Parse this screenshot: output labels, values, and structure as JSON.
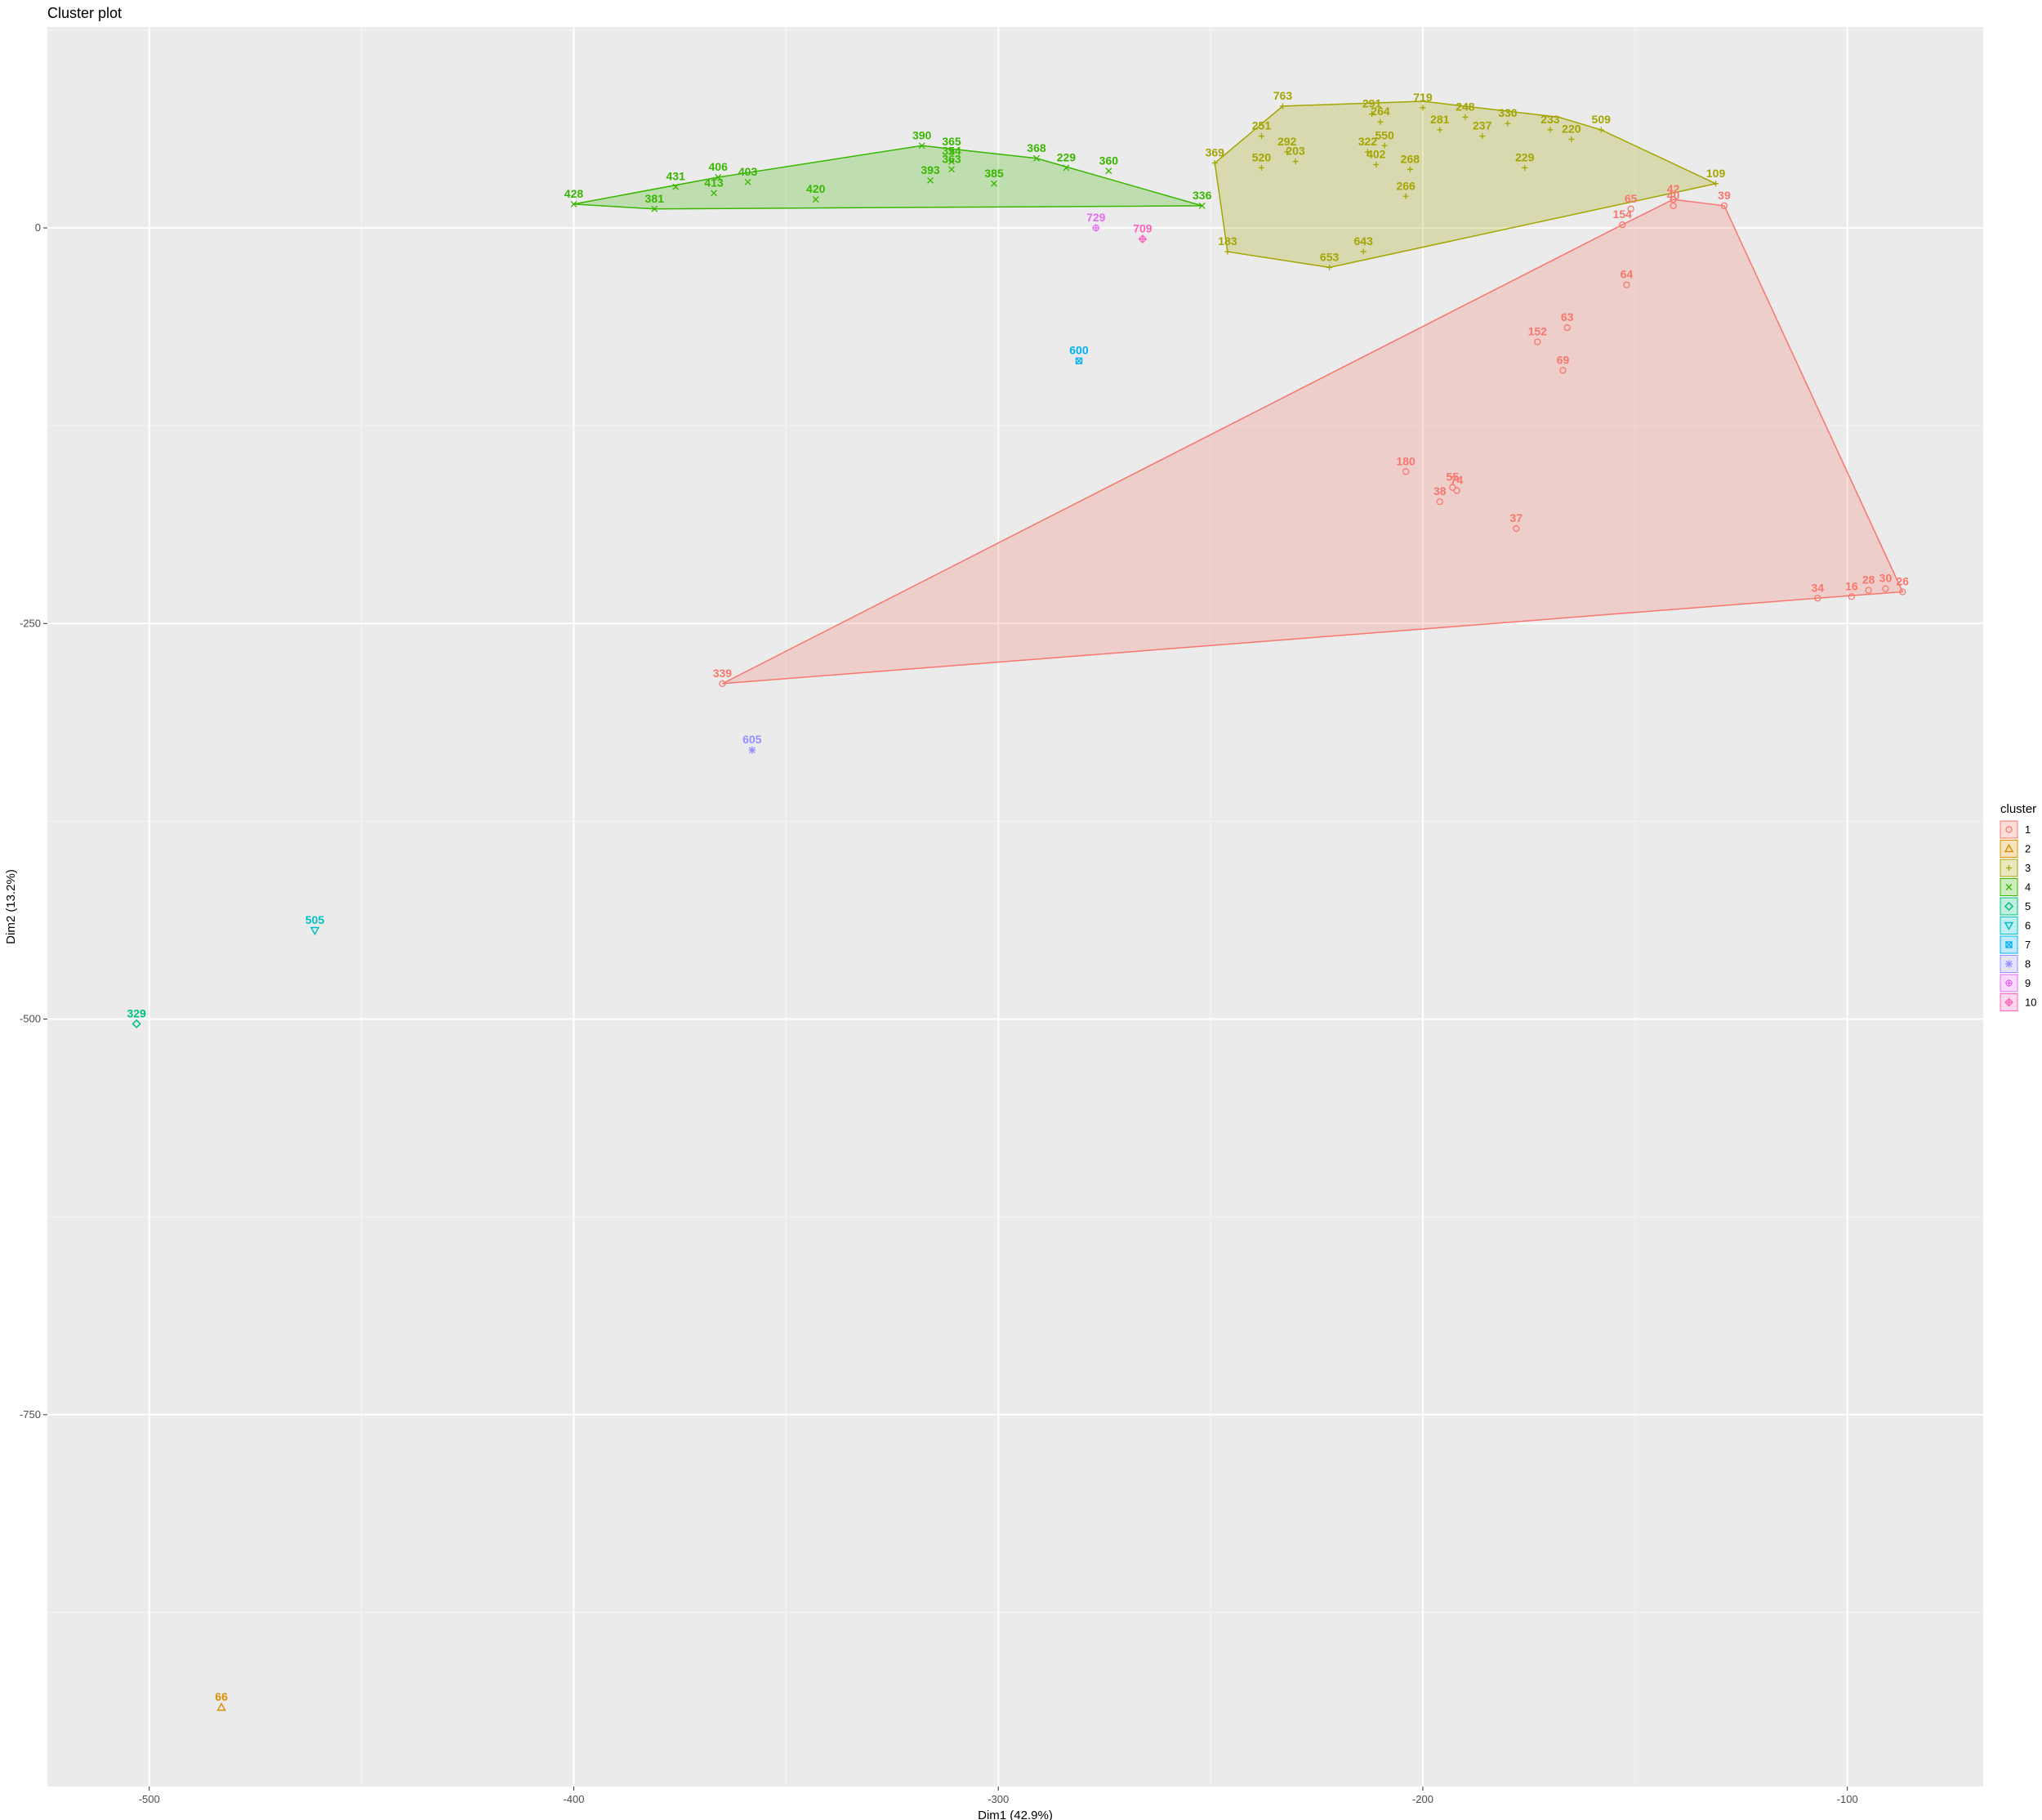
{
  "chart_data": {
    "type": "scatter",
    "title": "Cluster plot",
    "xlabel": "Dim1 (42.9%)",
    "ylabel": "Dim2 (13.2%)",
    "xlim": [
      -524,
      -68
    ],
    "ylim": [
      -985,
      127
    ],
    "x_ticks": [
      -500,
      -400,
      -300,
      -200,
      -100
    ],
    "y_ticks": [
      0,
      -250,
      -500,
      -750
    ],
    "grid": true,
    "legend": {
      "title": "cluster",
      "position": "right",
      "entries": [
        "1",
        "2",
        "3",
        "4",
        "5",
        "6",
        "7",
        "8",
        "9",
        "10"
      ]
    },
    "colors": [
      "#F8766D",
      "#D89000",
      "#A3A500",
      "#39B600",
      "#00BF7D",
      "#00BFC4",
      "#00B0F6",
      "#9590FF",
      "#E76BF3",
      "#FF62BC"
    ],
    "series": [
      {
        "name": "1",
        "points": [
          {
            "x": -365,
            "y": -288,
            "label": "339"
          },
          {
            "x": -153,
            "y": 2,
            "label": "154"
          },
          {
            "x": -151,
            "y": 12,
            "label": "65"
          },
          {
            "x": -141,
            "y": 14,
            "label": "40"
          },
          {
            "x": -141,
            "y": 18,
            "label": "42"
          },
          {
            "x": -129,
            "y": 14,
            "label": "39"
          },
          {
            "x": -152,
            "y": -36,
            "label": "64"
          },
          {
            "x": -173,
            "y": -72,
            "label": "152"
          },
          {
            "x": -166,
            "y": -63,
            "label": "63"
          },
          {
            "x": -167,
            "y": -90,
            "label": "69"
          },
          {
            "x": -204,
            "y": -154,
            "label": "180"
          },
          {
            "x": -196,
            "y": -173,
            "label": "38"
          },
          {
            "x": -193,
            "y": -164,
            "label": "55"
          },
          {
            "x": -192,
            "y": -166,
            "label": "74"
          },
          {
            "x": -178,
            "y": -190,
            "label": "37"
          },
          {
            "x": -107,
            "y": -234,
            "label": "34"
          },
          {
            "x": -99,
            "y": -233,
            "label": "16"
          },
          {
            "x": -95,
            "y": -229,
            "label": "28"
          },
          {
            "x": -91,
            "y": -228,
            "label": "30"
          },
          {
            "x": -87,
            "y": -230,
            "label": "26"
          }
        ]
      },
      {
        "name": "2",
        "points": [
          {
            "x": -483,
            "y": -935,
            "label": "66"
          }
        ]
      },
      {
        "name": "3",
        "points": [
          {
            "x": -249,
            "y": 41,
            "label": "369"
          },
          {
            "x": -233,
            "y": 77,
            "label": "763"
          },
          {
            "x": -238,
            "y": 58,
            "label": "251"
          },
          {
            "x": -232,
            "y": 48,
            "label": "292"
          },
          {
            "x": -238,
            "y": 38,
            "label": "520"
          },
          {
            "x": -230,
            "y": 42,
            "label": "203"
          },
          {
            "x": -213,
            "y": 48,
            "label": "322"
          },
          {
            "x": -209,
            "y": 52,
            "label": "550"
          },
          {
            "x": -211,
            "y": 40,
            "label": "402"
          },
          {
            "x": -203,
            "y": 37,
            "label": "268"
          },
          {
            "x": -204,
            "y": 20,
            "label": "266"
          },
          {
            "x": -210,
            "y": 67,
            "label": "264"
          },
          {
            "x": -212,
            "y": 72,
            "label": "291"
          },
          {
            "x": -200,
            "y": 76,
            "label": "719"
          },
          {
            "x": -190,
            "y": 70,
            "label": "248"
          },
          {
            "x": -180,
            "y": 66,
            "label": "330"
          },
          {
            "x": -170,
            "y": 62,
            "label": "233"
          },
          {
            "x": -165,
            "y": 56,
            "label": "220"
          },
          {
            "x": -158,
            "y": 62,
            "label": "509"
          },
          {
            "x": -131,
            "y": 28,
            "label": "109"
          },
          {
            "x": -246,
            "y": -15,
            "label": "183"
          },
          {
            "x": -222,
            "y": -25,
            "label": "653"
          },
          {
            "x": -214,
            "y": -15,
            "label": "643"
          },
          {
            "x": -176,
            "y": 38,
            "label": "229"
          },
          {
            "x": -196,
            "y": 62,
            "label": "281"
          },
          {
            "x": -186,
            "y": 58,
            "label": "237"
          }
        ]
      },
      {
        "name": "4",
        "points": [
          {
            "x": -400,
            "y": 15,
            "label": "428"
          },
          {
            "x": -381,
            "y": 12,
            "label": "381"
          },
          {
            "x": -376,
            "y": 26,
            "label": "431"
          },
          {
            "x": -366,
            "y": 32,
            "label": "406"
          },
          {
            "x": -367,
            "y": 22,
            "label": "413"
          },
          {
            "x": -359,
            "y": 29,
            "label": "403"
          },
          {
            "x": -343,
            "y": 18,
            "label": "420"
          },
          {
            "x": -318,
            "y": 52,
            "label": "390"
          },
          {
            "x": -311,
            "y": 37,
            "label": "363"
          },
          {
            "x": -311,
            "y": 48,
            "label": "365"
          },
          {
            "x": -311,
            "y": 42,
            "label": "354"
          },
          {
            "x": -316,
            "y": 30,
            "label": "393"
          },
          {
            "x": -301,
            "y": 28,
            "label": "385"
          },
          {
            "x": -291,
            "y": 44,
            "label": "368"
          },
          {
            "x": -284,
            "y": 38,
            "label": "229"
          },
          {
            "x": -274,
            "y": 36,
            "label": "360"
          },
          {
            "x": -252,
            "y": 14,
            "label": "336"
          }
        ]
      },
      {
        "name": "5",
        "points": [
          {
            "x": -503,
            "y": -503,
            "label": "329"
          }
        ]
      },
      {
        "name": "6",
        "points": [
          {
            "x": -461,
            "y": -444,
            "label": "505"
          }
        ]
      },
      {
        "name": "7",
        "points": [
          {
            "x": -281,
            "y": -84,
            "label": "600"
          }
        ]
      },
      {
        "name": "8",
        "points": [
          {
            "x": -358,
            "y": -330,
            "label": "605"
          }
        ]
      },
      {
        "name": "9",
        "points": [
          {
            "x": -277,
            "y": 0,
            "label": "729"
          }
        ]
      },
      {
        "name": "10",
        "points": [
          {
            "x": -266,
            "y": -7,
            "label": "709"
          }
        ]
      }
    ],
    "hulls": [
      {
        "cluster": "1",
        "points": [
          [
            -365,
            -288
          ],
          [
            -153,
            2
          ],
          [
            -141,
            18
          ],
          [
            -129,
            14
          ],
          [
            -87,
            -230
          ],
          [
            -107,
            -234
          ]
        ]
      },
      {
        "cluster": "3",
        "points": [
          [
            -249,
            41
          ],
          [
            -233,
            77
          ],
          [
            -200,
            80
          ],
          [
            -168,
            70
          ],
          [
            -158,
            62
          ],
          [
            -131,
            28
          ],
          [
            -222,
            -25
          ],
          [
            -246,
            -15
          ]
        ]
      },
      {
        "cluster": "4",
        "points": [
          [
            -400,
            15
          ],
          [
            -366,
            32
          ],
          [
            -318,
            52
          ],
          [
            -291,
            44
          ],
          [
            -252,
            14
          ],
          [
            -381,
            12
          ]
        ]
      }
    ]
  }
}
